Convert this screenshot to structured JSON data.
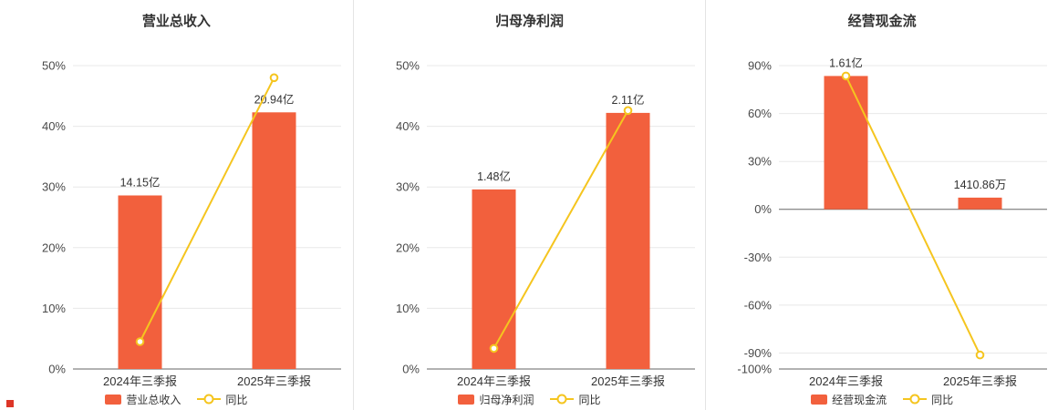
{
  "colors": {
    "bar": "#f2603d",
    "line": "#f5c51f",
    "grid": "#e8e8e8",
    "axis": "#666666",
    "tick_text": "#4a4a4a",
    "label_text": "#333333",
    "title_text": "#333333"
  },
  "chart_data": [
    {
      "type": "bar+line",
      "title": "营业总收入",
      "categories": [
        "2024年三季报",
        "2025年三季报"
      ],
      "ylim": [
        0,
        50
      ],
      "yticks": [
        50,
        40,
        30,
        20,
        10,
        0
      ],
      "ytick_suffix": "%",
      "grid": true,
      "legend_position": "bottom",
      "bar": {
        "name": "营业总收入",
        "value_labels": [
          "14.15亿",
          "20.94亿"
        ],
        "plotted_pct": [
          28.6,
          42.3
        ]
      },
      "line": {
        "name": "同比",
        "values_pct": [
          4.5,
          48.0
        ]
      }
    },
    {
      "type": "bar+line",
      "title": "归母净利润",
      "categories": [
        "2024年三季报",
        "2025年三季报"
      ],
      "ylim": [
        0,
        50
      ],
      "yticks": [
        50,
        40,
        30,
        20,
        10,
        0
      ],
      "ytick_suffix": "%",
      "grid": true,
      "legend_position": "bottom",
      "bar": {
        "name": "归母净利润",
        "value_labels": [
          "1.48亿",
          "2.11亿"
        ],
        "plotted_pct": [
          29.6,
          42.2
        ]
      },
      "line": {
        "name": "同比",
        "values_pct": [
          3.4,
          42.6
        ]
      }
    },
    {
      "type": "bar+line",
      "title": "经营现金流",
      "categories": [
        "2024年三季报",
        "2025年三季报"
      ],
      "ylim": [
        -100,
        90
      ],
      "yticks": [
        90,
        60,
        30,
        0,
        -30,
        -60,
        -90,
        -100
      ],
      "ytick_suffix": "%",
      "grid": true,
      "legend_position": "bottom",
      "bar": {
        "name": "经营现金流",
        "value_labels": [
          "1.61亿",
          "1410.86万"
        ],
        "plotted_pct": [
          83.5,
          7.3
        ]
      },
      "line": {
        "name": "同比",
        "values_pct": [
          83.5,
          -91.2
        ]
      }
    }
  ]
}
